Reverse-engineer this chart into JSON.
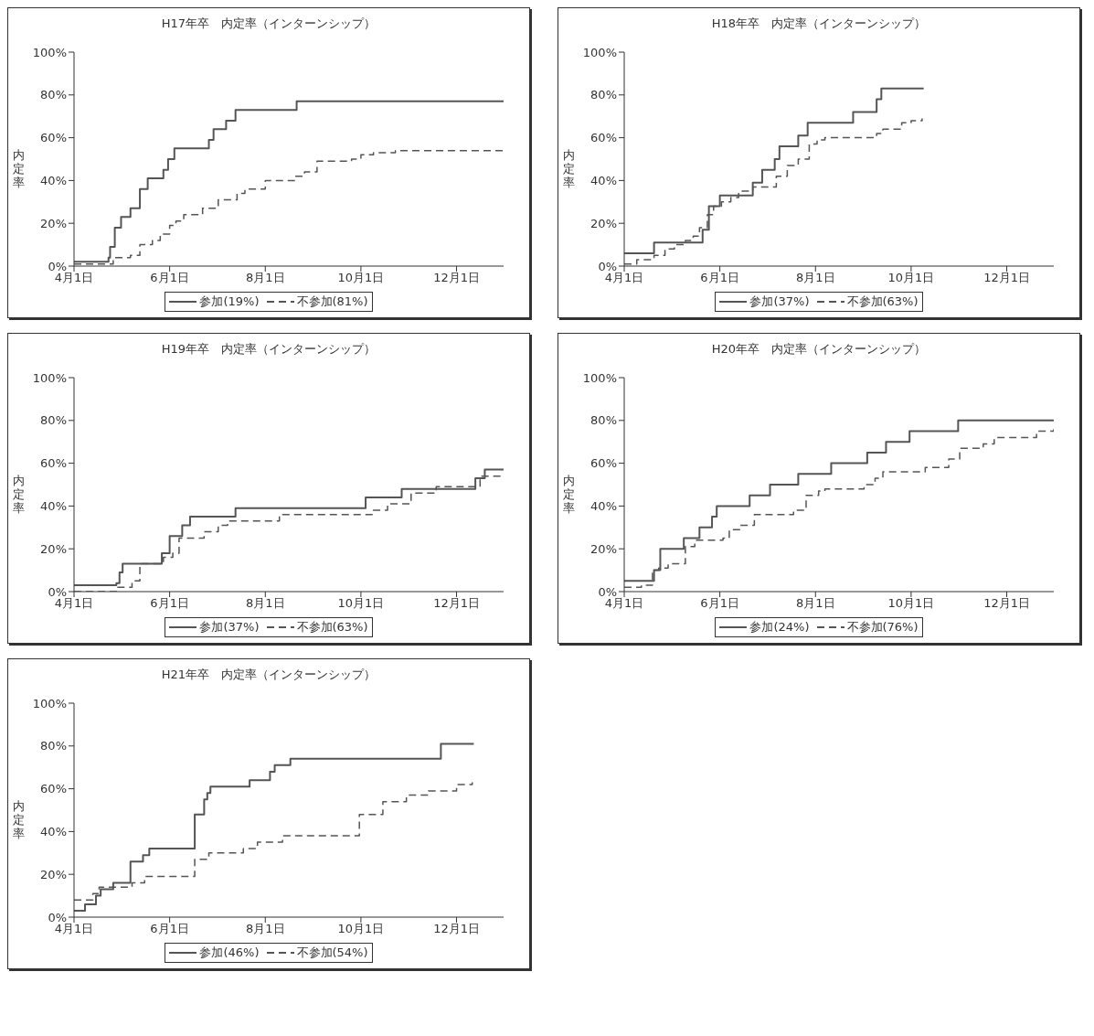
{
  "chart_data": [
    {
      "type": "step",
      "title": "H17年卒　内定率（インターンシップ）",
      "ylabel": "内定率",
      "xlim": [
        "--04-01",
        "--12-31"
      ],
      "xticks": [
        {
          "value": "--04-01",
          "label": "4月1日"
        },
        {
          "value": "--06-01",
          "label": "6月1日"
        },
        {
          "value": "--08-01",
          "label": "8月1日"
        },
        {
          "value": "--10-01",
          "label": "10月1日"
        },
        {
          "value": "--12-01",
          "label": "12月1日"
        }
      ],
      "ylim": [
        0,
        100
      ],
      "yticks": [
        {
          "value": 0,
          "label": "0%"
        },
        {
          "value": 20,
          "label": "20%"
        },
        {
          "value": 40,
          "label": "40%"
        },
        {
          "value": 60,
          "label": "60%"
        },
        {
          "value": 80,
          "label": "80%"
        },
        {
          "value": 100,
          "label": "100%"
        }
      ],
      "legend": "bottom",
      "marker": "none",
      "series": [
        {
          "name": "参加(19%)",
          "color": "#555555",
          "line_style": "solid",
          "x": [
            "--04-01",
            "--04-23",
            "--04-24",
            "--04-27",
            "--05-01",
            "--05-07",
            "--05-13",
            "--05-18",
            "--05-28",
            "--05-31",
            "--06-04",
            "--06-26",
            "--06-29",
            "--07-07",
            "--07-13",
            "--08-21",
            "--12-31"
          ],
          "values": [
            2,
            4,
            9,
            18,
            23,
            27,
            36,
            41,
            45,
            50,
            55,
            59,
            64,
            68,
            73,
            77,
            77
          ]
        },
        {
          "name": "不参加(81%)",
          "color": "#555555",
          "line_style": "dashed",
          "x": [
            "--04-01",
            "--04-26",
            "--05-07",
            "--05-13",
            "--05-21",
            "--05-26",
            "--06-01",
            "--06-05",
            "--06-10",
            "--06-22",
            "--07-02",
            "--07-14",
            "--07-19",
            "--08-01",
            "--08-20",
            "--08-26",
            "--09-03",
            "--09-25",
            "--10-01",
            "--10-09",
            "--10-23",
            "--12-31"
          ],
          "values": [
            1,
            4,
            5,
            10,
            12,
            15,
            19,
            21,
            24,
            27,
            31,
            34,
            36,
            40,
            42,
            44,
            49,
            50,
            52,
            53,
            54,
            54
          ]
        }
      ]
    },
    {
      "type": "step",
      "title": "H18年卒　内定率（インターンシップ）",
      "ylabel": "内定率",
      "xlim": [
        "--04-01",
        "--12-31"
      ],
      "xticks": [
        {
          "value": "--04-01",
          "label": "4月1日"
        },
        {
          "value": "--06-01",
          "label": "6月1日"
        },
        {
          "value": "--08-01",
          "label": "8月1日"
        },
        {
          "value": "--10-01",
          "label": "10月1日"
        },
        {
          "value": "--12-01",
          "label": "12月1日"
        }
      ],
      "ylim": [
        0,
        100
      ],
      "yticks": [
        {
          "value": 0,
          "label": "0%"
        },
        {
          "value": 20,
          "label": "20%"
        },
        {
          "value": 40,
          "label": "40%"
        },
        {
          "value": 60,
          "label": "60%"
        },
        {
          "value": 80,
          "label": "80%"
        },
        {
          "value": 100,
          "label": "100%"
        }
      ],
      "legend": "bottom",
      "marker": "none",
      "series": [
        {
          "name": "参加(37%)",
          "color": "#555555",
          "line_style": "solid",
          "x": [
            "--04-01",
            "--04-20",
            "--05-21",
            "--05-25",
            "--06-01",
            "--06-22",
            "--06-28",
            "--07-06",
            "--07-09",
            "--07-21",
            "--07-27",
            "--08-25",
            "--09-09",
            "--09-12",
            "--10-09"
          ],
          "values": [
            6,
            11,
            17,
            28,
            33,
            39,
            45,
            50,
            56,
            61,
            67,
            72,
            78,
            83,
            83
          ]
        },
        {
          "name": "不参加(63%)",
          "color": "#555555",
          "line_style": "dashed",
          "x": [
            "--04-01",
            "--04-09",
            "--04-20",
            "--04-27",
            "--05-03",
            "--05-10",
            "--05-15",
            "--05-19",
            "--05-24",
            "--05-28",
            "--06-02",
            "--06-08",
            "--06-13",
            "--06-22",
            "--07-07",
            "--07-14",
            "--07-21",
            "--07-28",
            "--08-02",
            "--08-07",
            "--09-09",
            "--09-13",
            "--09-25",
            "--10-01",
            "--10-08"
          ],
          "values": [
            1,
            3,
            5,
            8,
            10,
            12,
            14,
            18,
            24,
            28,
            30,
            32,
            35,
            37,
            42,
            47,
            50,
            57,
            59,
            60,
            62,
            64,
            67,
            68,
            69
          ]
        }
      ]
    },
    {
      "type": "step",
      "title": "H19年卒　内定率（インターンシップ）",
      "ylabel": "内定率",
      "xlim": [
        "--04-01",
        "--12-31"
      ],
      "xticks": [
        {
          "value": "--04-01",
          "label": "4月1日"
        },
        {
          "value": "--06-01",
          "label": "6月1日"
        },
        {
          "value": "--08-01",
          "label": "8月1日"
        },
        {
          "value": "--10-01",
          "label": "10月1日"
        },
        {
          "value": "--12-01",
          "label": "12月1日"
        }
      ],
      "ylim": [
        0,
        100
      ],
      "yticks": [
        {
          "value": 0,
          "label": "0%"
        },
        {
          "value": 20,
          "label": "20%"
        },
        {
          "value": 40,
          "label": "40%"
        },
        {
          "value": 60,
          "label": "60%"
        },
        {
          "value": 80,
          "label": "80%"
        },
        {
          "value": 100,
          "label": "100%"
        }
      ],
      "legend": "bottom",
      "marker": "none",
      "series": [
        {
          "name": "参加(37%)",
          "color": "#555555",
          "line_style": "solid",
          "x": [
            "--04-01",
            "--04-28",
            "--04-30",
            "--05-02",
            "--05-27",
            "--06-01",
            "--06-09",
            "--06-14",
            "--07-13",
            "--10-04",
            "--10-27",
            "--12-13",
            "--12-19",
            "--12-31"
          ],
          "values": [
            3,
            4,
            9,
            13,
            18,
            26,
            31,
            35,
            39,
            44,
            48,
            53,
            57,
            57
          ]
        },
        {
          "name": "不参加(63%)",
          "color": "#555555",
          "line_style": "dashed",
          "x": [
            "--04-01",
            "--04-28",
            "--05-08",
            "--05-13",
            "--05-28",
            "--06-03",
            "--06-07",
            "--06-23",
            "--07-02",
            "--07-08",
            "--08-10",
            "--10-09",
            "--10-18",
            "--11-02",
            "--11-18",
            "--12-16",
            "--12-31"
          ],
          "values": [
            0,
            2,
            5,
            13,
            16,
            18,
            25,
            28,
            31,
            33,
            36,
            38,
            41,
            46,
            49,
            54,
            54
          ]
        }
      ]
    },
    {
      "type": "step",
      "title": "H20年卒　内定率（インターンシップ）",
      "ylabel": "内定率",
      "xlim": [
        "--04-01",
        "--12-31"
      ],
      "xticks": [
        {
          "value": "--04-01",
          "label": "4月1日"
        },
        {
          "value": "--06-01",
          "label": "6月1日"
        },
        {
          "value": "--08-01",
          "label": "8月1日"
        },
        {
          "value": "--10-01",
          "label": "10月1日"
        },
        {
          "value": "--12-01",
          "label": "12月1日"
        }
      ],
      "ylim": [
        0,
        100
      ],
      "yticks": [
        {
          "value": 0,
          "label": "0%"
        },
        {
          "value": 20,
          "label": "20%"
        },
        {
          "value": 40,
          "label": "40%"
        },
        {
          "value": 60,
          "label": "60%"
        },
        {
          "value": 80,
          "label": "80%"
        },
        {
          "value": 100,
          "label": "100%"
        }
      ],
      "legend": "bottom",
      "marker": "none",
      "series": [
        {
          "name": "参加(24%)",
          "color": "#555555",
          "line_style": "solid",
          "x": [
            "--04-01",
            "--04-20",
            "--04-24",
            "--05-09",
            "--05-19",
            "--05-27",
            "--05-30",
            "--06-20",
            "--07-03",
            "--07-21",
            "--08-11",
            "--09-03",
            "--09-15",
            "--09-30",
            "--10-31",
            "--12-31"
          ],
          "values": [
            5,
            10,
            20,
            25,
            30,
            35,
            40,
            45,
            50,
            55,
            60,
            65,
            70,
            75,
            80,
            80
          ]
        },
        {
          "name": "不参加(76%)",
          "color": "#555555",
          "line_style": "dashed",
          "x": [
            "--04-01",
            "--04-12",
            "--04-19",
            "--04-23",
            "--04-29",
            "--05-10",
            "--05-16",
            "--06-03",
            "--06-07",
            "--06-14",
            "--06-23",
            "--07-18",
            "--07-26",
            "--08-03",
            "--08-07",
            "--09-01",
            "--09-08",
            "--09-13",
            "--10-10",
            "--10-25",
            "--11-01",
            "--11-16",
            "--11-23",
            "--12-20",
            "--12-31"
          ],
          "values": [
            2,
            3,
            10,
            11,
            13,
            21,
            24,
            25,
            29,
            31,
            36,
            38,
            45,
            47,
            48,
            50,
            53,
            56,
            58,
            62,
            67,
            69,
            72,
            75,
            76
          ]
        }
      ]
    },
    {
      "type": "step",
      "title": "H21年卒　内定率（インターンシップ）",
      "ylabel": "内定率",
      "xlim": [
        "--04-01",
        "--12-31"
      ],
      "xticks": [
        {
          "value": "--04-01",
          "label": "4月1日"
        },
        {
          "value": "--06-01",
          "label": "6月1日"
        },
        {
          "value": "--08-01",
          "label": "8月1日"
        },
        {
          "value": "--10-01",
          "label": "10月1日"
        },
        {
          "value": "--12-01",
          "label": "12月1日"
        }
      ],
      "ylim": [
        0,
        100
      ],
      "yticks": [
        {
          "value": 0,
          "label": "0%"
        },
        {
          "value": 20,
          "label": "20%"
        },
        {
          "value": 40,
          "label": "40%"
        },
        {
          "value": 60,
          "label": "60%"
        },
        {
          "value": 80,
          "label": "80%"
        },
        {
          "value": 100,
          "label": "100%"
        }
      ],
      "legend": "bottom",
      "marker": "none",
      "series": [
        {
          "name": "参加(46%)",
          "color": "#555555",
          "line_style": "solid",
          "x": [
            "--04-01",
            "--04-08",
            "--04-15",
            "--04-18",
            "--04-26",
            "--05-07",
            "--05-15",
            "--05-19",
            "--06-17",
            "--06-23",
            "--06-25",
            "--06-27",
            "--07-22",
            "--08-04",
            "--08-07",
            "--08-17",
            "--11-21",
            "--12-12"
          ],
          "values": [
            3,
            6,
            10,
            13,
            16,
            26,
            29,
            32,
            48,
            55,
            58,
            61,
            64,
            68,
            71,
            74,
            81,
            81
          ]
        },
        {
          "name": "不参加(54%)",
          "color": "#555555",
          "line_style": "dashed",
          "x": [
            "--04-01",
            "--04-13",
            "--04-17",
            "--05-08",
            "--05-16",
            "--06-17",
            "--06-26",
            "--07-18",
            "--07-27",
            "--08-12",
            "--09-30",
            "--10-15",
            "--10-30",
            "--11-13",
            "--12-01",
            "--12-11"
          ],
          "values": [
            8,
            11,
            14,
            16,
            19,
            27,
            30,
            32,
            35,
            38,
            48,
            54,
            57,
            59,
            62,
            63
          ]
        }
      ]
    }
  ]
}
